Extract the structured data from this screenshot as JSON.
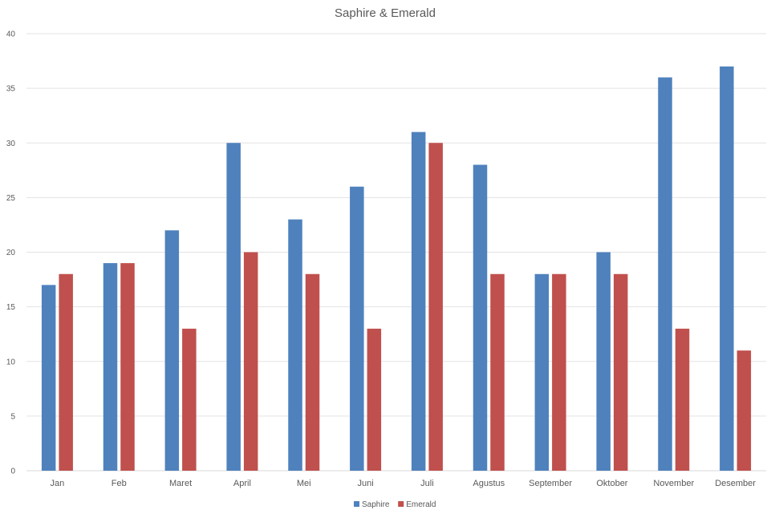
{
  "chart_data": {
    "type": "bar",
    "title": "Saphire & Emerald",
    "xlabel": "",
    "ylabel": "",
    "categories": [
      "Jan",
      "Feb",
      "Maret",
      "April",
      "Mei",
      "Juni",
      "Juli",
      "Agustus",
      "September",
      "Oktober",
      "November",
      "Desember"
    ],
    "series": [
      {
        "name": "Saphire",
        "color": "#4f81bd",
        "values": [
          17,
          19,
          22,
          30,
          23,
          26,
          31,
          28,
          18,
          20,
          36,
          37
        ]
      },
      {
        "name": "Emerald",
        "color": "#c0504d",
        "values": [
          18,
          19,
          13,
          20,
          18,
          13,
          30,
          18,
          18,
          18,
          13,
          11
        ]
      }
    ],
    "ylim": [
      0,
      40
    ],
    "yticks": [
      0,
      5,
      10,
      15,
      20,
      25,
      30,
      35,
      40
    ],
    "grid": true,
    "legend_position": "bottom"
  }
}
